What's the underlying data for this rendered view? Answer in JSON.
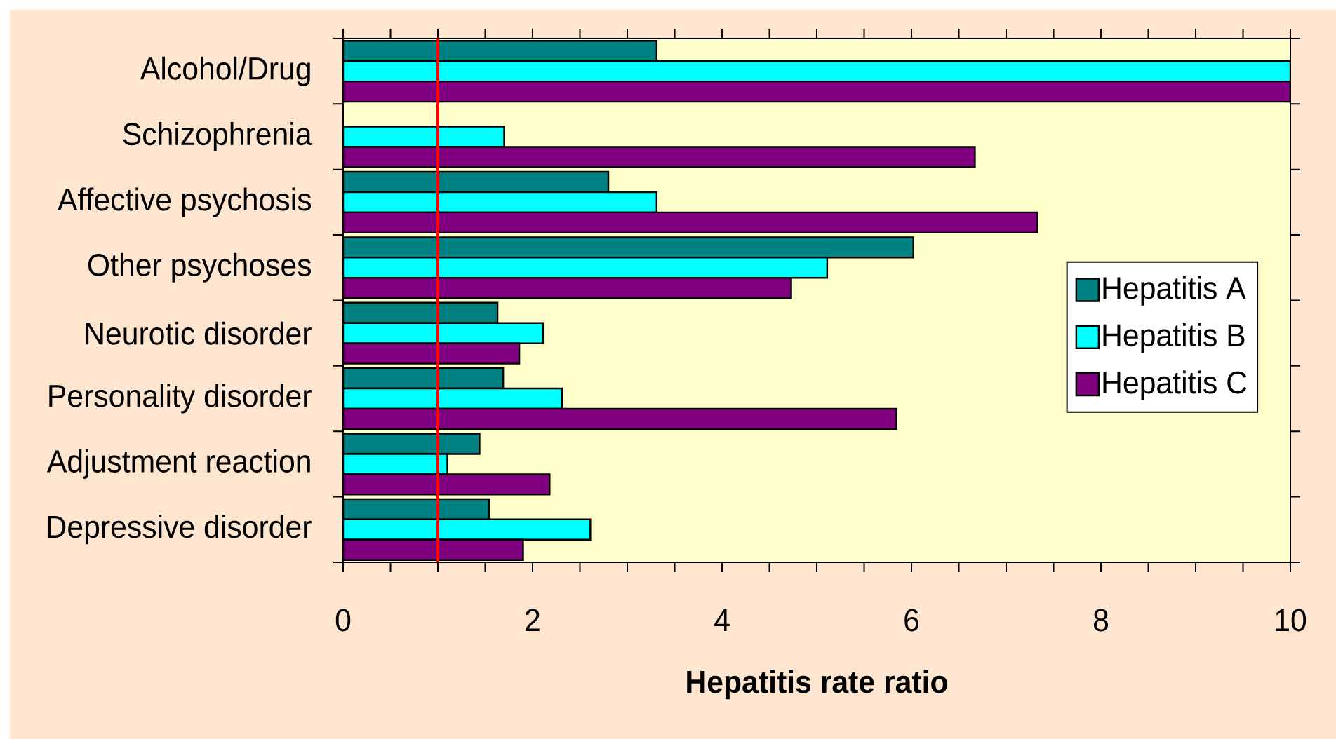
{
  "chart_data": {
    "type": "bar",
    "orientation": "horizontal",
    "categories": [
      "Alcohol/Drug",
      "Schizophrenia",
      "Affective psychosis",
      "Other psychoses",
      "Neurotic disorder",
      "Personality disorder",
      "Adjustment reaction",
      "Depressive disorder"
    ],
    "series": [
      {
        "name": "Hepatitis A",
        "color": "#008080",
        "values": [
          3.31,
          null,
          2.8,
          6.02,
          1.63,
          1.69,
          1.44,
          1.54
        ]
      },
      {
        "name": "Hepatitis B",
        "color": "#00ffff",
        "values": [
          10,
          1.7,
          3.31,
          5.11,
          2.11,
          2.31,
          1.1,
          2.61
        ]
      },
      {
        "name": "Hepatitis C",
        "color": "#800080",
        "values": [
          10,
          6.67,
          7.33,
          4.73,
          1.86,
          5.84,
          2.18,
          1.9
        ]
      }
    ],
    "xlabel": "Hepatitis rate ratio",
    "xlim": [
      0,
      10
    ],
    "xticks": [
      0,
      {
        "value": 0.5,
        "label": null
      },
      {
        "value": 1,
        "label": null
      },
      {
        "value": 1.5,
        "label": null
      },
      2,
      {
        "value": 2.5,
        "label": null
      },
      {
        "value": 3,
        "label": null
      },
      {
        "value": 3.5,
        "label": null
      },
      4,
      {
        "value": 4.5,
        "label": null
      },
      {
        "value": 5,
        "label": null
      },
      {
        "value": 5.5,
        "label": null
      },
      6,
      {
        "value": 6.5,
        "label": null
      },
      {
        "value": 7,
        "label": null
      },
      {
        "value": 7.5,
        "label": null
      },
      8,
      {
        "value": 8.5,
        "label": null
      },
      {
        "value": 9,
        "label": null
      },
      {
        "value": 9.5,
        "label": null
      },
      10
    ],
    "ref_lines": [
      {
        "axis": "x",
        "value": 1,
        "color": "#ff0000"
      }
    ],
    "legend": "right"
  }
}
